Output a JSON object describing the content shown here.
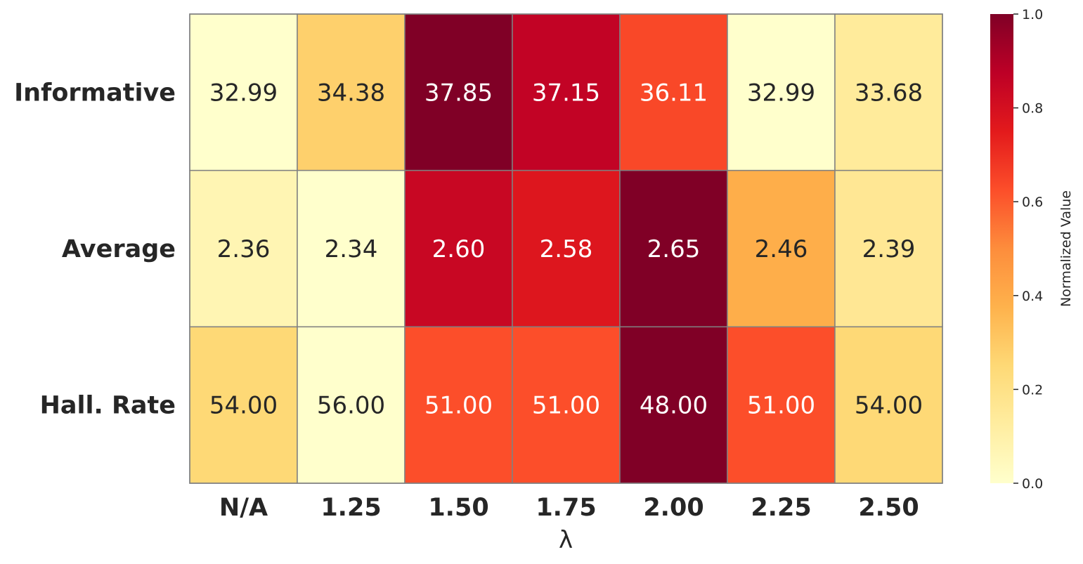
{
  "chart_data": {
    "type": "heatmap",
    "title": "",
    "xlabel": "λ",
    "ylabel": "",
    "x": [
      "N/A",
      "1.25",
      "1.50",
      "1.75",
      "2.00",
      "2.25",
      "2.50"
    ],
    "rows": [
      "Informative",
      "Average",
      "Hall. Rate"
    ],
    "labels": [
      [
        "32.99",
        "34.38",
        "37.85",
        "37.15",
        "36.11",
        "32.99",
        "33.68"
      ],
      [
        "2.36",
        "2.34",
        "2.60",
        "2.58",
        "2.65",
        "2.46",
        "2.39"
      ],
      [
        "54.00",
        "56.00",
        "51.00",
        "51.00",
        "48.00",
        "51.00",
        "54.00"
      ]
    ],
    "normalized": [
      [
        0.0,
        0.28,
        1.0,
        0.86,
        0.64,
        0.0,
        0.14
      ],
      [
        0.07,
        0.0,
        0.84,
        0.77,
        1.0,
        0.39,
        0.16
      ],
      [
        0.25,
        0.0,
        0.625,
        0.625,
        1.0,
        0.625,
        0.25
      ]
    ],
    "colorbar": {
      "label": "Normalized Value",
      "ticks": [
        "0.0",
        "0.2",
        "0.4",
        "0.6",
        "0.8",
        "1.0"
      ],
      "range": [
        0,
        1
      ],
      "colormap": "YlOrRd",
      "stops": [
        "#ffffcc",
        "#ffeda0",
        "#fed976",
        "#feb24c",
        "#fd8d3c",
        "#fc4e2a",
        "#e31a1c",
        "#bd0026",
        "#800026"
      ]
    }
  }
}
